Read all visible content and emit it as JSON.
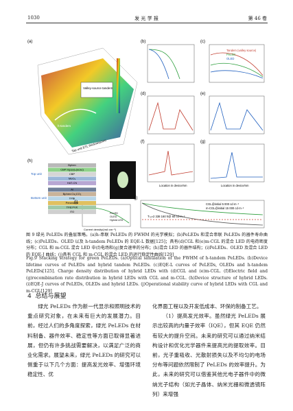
{
  "header": {
    "page": "1030",
    "journal": "发 光 学 报",
    "volume": "第 46 卷"
  },
  "figure": {
    "panels": [
      "(a)",
      "(b)",
      "(c)",
      "(d)",
      "(e)",
      "(f)",
      "(g)",
      "(h)",
      "(i)",
      "(j)"
    ],
    "annotations": {
      "valley": "Valley-source tandem",
      "emission": "h-tandem",
      "axis_a": "Top unit ETL thickness/nm"
    },
    "legend_c": [
      "Tandem (valley source)",
      "PeLED",
      "OLED"
    ],
    "legend_i": [
      "PeLED",
      "OLED",
      "Hybrid LED"
    ],
    "legend_j": [
      "CGL@initial 5 000 cd·m⁻²",
      "m-CGL@initial 15 000 cd·m⁻²"
    ],
    "t70": "T₇₀≈2 338 160 h@ 60 cd·m⁻²",
    "stack": [
      "Bphen",
      "CBP:Ir(ppy)₂(acac)",
      "CBP",
      "MoO₃",
      "HAT-CN",
      "Al",
      "Bphen:Cs₂CO₃",
      "TPBi",
      "Perovskite",
      "TFB:PVK",
      "ITO"
    ],
    "units": [
      "Top unit",
      "Bottom unit"
    ],
    "xlabel_dg": "Location in device/nm",
    "xlabel_i": "Current density/(mA·cm⁻²)"
  },
  "caption": {
    "zh": "图 9  绿光 PeLEDs 的叠层策略。(a)h-串联 PeLEDs 的 FWHM 的光学模拟；(b)PeLEDs 和混合串联 PeLEDs 的器件寿命曲线；(c)PeLEDs、OLED 以及 h-tandem PeLEDs 的 EQE-L 数据[125]；具有(d)CGL 和(e)m-CGL 的混合 LED 的电荷密度分布；CGL 和 m-CGL 混合 LED 中(f)电场和(g)复合速率的分布；(h)混合 LED 的器件结构；(i)PeLEDs、OLED 及混合 LED 的 EQE-J 曲线；(j)具有 CGL 和 m-CGL 的混合 LED 的运行稳定性曲线[129]",
    "en": "Fig.9  Stacking strategy for green PeLEDs. (a)Optical simulation of the FWHM of h-tandem PeLEDs. (b)Device lifetime curves of PeLEDs and hybrid tandem PeLEDs. (c)EQE-L curves of PeLEDs, OLEDs and h-tandem PeLEDs[125]. Charge density distribution of hybrid LEDs with (d)CGL and (e)m-CGL. (f)Electric field and (g)recombination rate distribution in hybrid LEDs with CGL and m-CGL. (h)Device structure of hybrid LEDs. (i)EQE-J curves of PeLEDs, OLEDs and hybrid LEDs. (j)Operational stability curve of hybrid LEDs with CGL and m-CGL[129]"
  },
  "section": {
    "number": "4",
    "title": "总结与展望"
  },
  "body": {
    "left": "绿光 PeLEDs 作为新一代显示和照明技术的重点研究对象，在未来有巨大的发展潜力。目前，经过人们的多角度探索，绿光 PeLEDs 在材料制备、器件效率、稳定性等方面已取得显著进展，但仍有许多挑战需要解决，以满足广泛的商业化需求。展望未来，绿光 PeLEDs 的研究可以侧重于以下几个方面：提高发光效率、增强环境稳定性、优",
    "right": [
      "化界面工程以及开发低成本、环保的制备工艺。",
      "（1）提高发光效率。虽然绿光 PeLEDs 展示出较高的内量子效率（IQE），但其 EQE 仍然有较大的提升空间。未来的研究可以通过纳米结构设计和优化光学器件来提高光的提取效率。目前，光子重吸收、光散射损失以及不均匀的电场分布等问题依然限制了 PeLEDs 的效率提升。为此，未来的研究可以借鉴其他光电子器件中的微纳光子结构（如光子晶体、纳米光栅和微透镜阵列）来增强"
    ]
  }
}
